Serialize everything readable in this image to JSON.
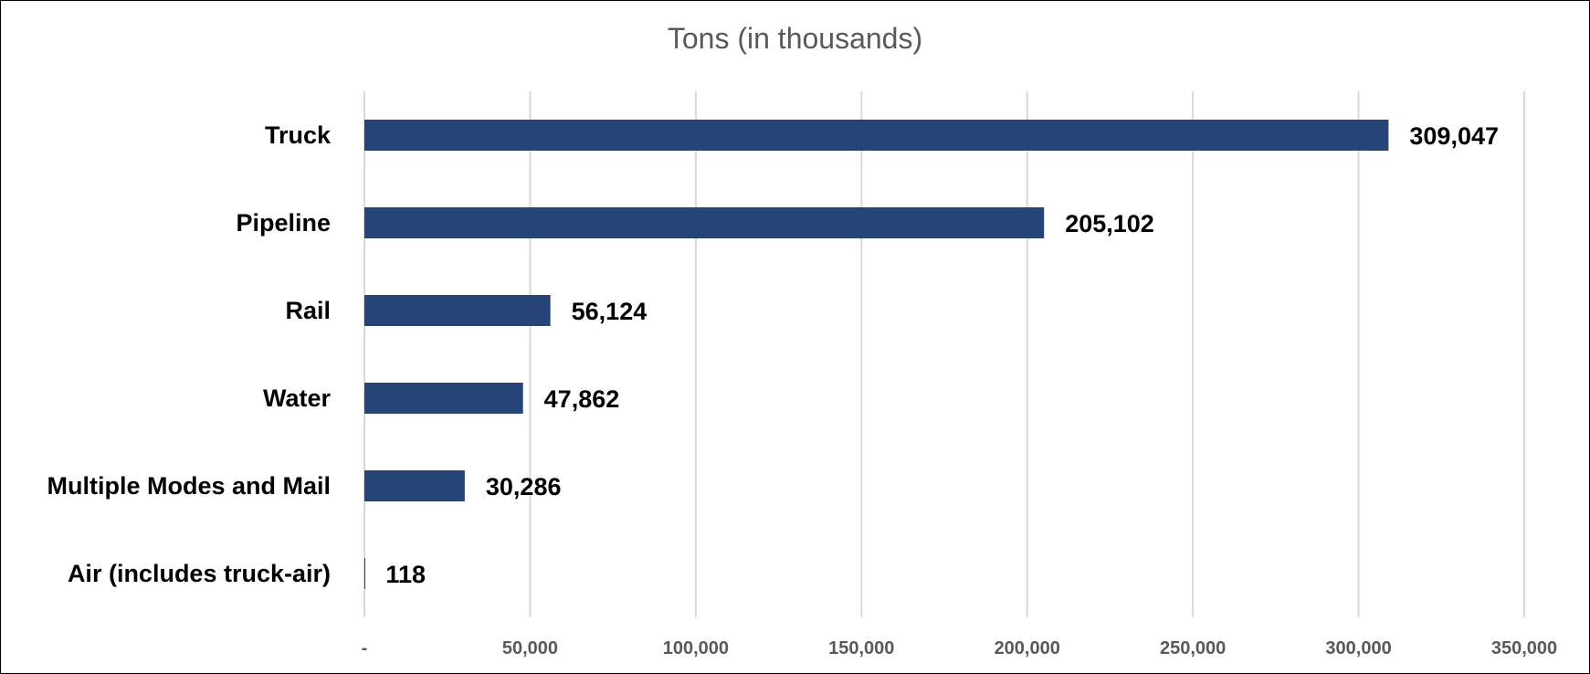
{
  "chart_data": {
    "type": "bar",
    "orientation": "horizontal",
    "title": "Tons (in thousands)",
    "categories": [
      "Truck",
      "Pipeline",
      "Rail",
      "Water",
      "Multiple Modes and Mail",
      "Air (includes truck-air)"
    ],
    "values": [
      309047,
      205102,
      56124,
      47862,
      30286,
      118
    ],
    "value_labels": [
      "309,047",
      "205,102",
      "56,124",
      "47,862",
      "30,286",
      "118"
    ],
    "xlim": [
      0,
      350000
    ],
    "x_ticks": [
      0,
      50000,
      100000,
      150000,
      200000,
      250000,
      300000,
      350000
    ],
    "x_tick_labels": [
      "-",
      "50,000",
      "100,000",
      "150,000",
      "200,000",
      "250,000",
      "300,000",
      "350,000"
    ],
    "bar_color": "#264478",
    "grid": true,
    "legend": false
  }
}
